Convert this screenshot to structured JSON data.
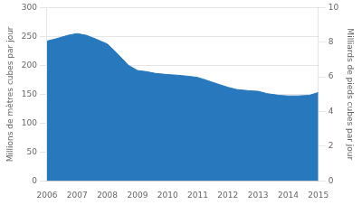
{
  "chart_data": {
    "type": "area",
    "x": [
      2006,
      2006.3,
      2006.7,
      2007,
      2007.3,
      2007.6,
      2008,
      2008.3,
      2008.7,
      2009,
      2009.3,
      2009.6,
      2010,
      2010.3,
      2010.7,
      2011,
      2011.3,
      2011.7,
      2012,
      2012.3,
      2012.7,
      2013,
      2013.3,
      2013.7,
      2014,
      2014.3,
      2014.7,
      2015
    ],
    "values": [
      242,
      246,
      252,
      255,
      252,
      246,
      237,
      222,
      200,
      191,
      189,
      186,
      184,
      183,
      181,
      179,
      174,
      167,
      162,
      158,
      156,
      155,
      151,
      148,
      147,
      147,
      148,
      153
    ],
    "color": "#2878BE",
    "xlim": [
      2006,
      2015
    ],
    "xticks": [
      2006,
      2007,
      2008,
      2009,
      2010,
      2011,
      2012,
      2013,
      2014,
      2015
    ],
    "ylim": [
      0,
      300
    ],
    "yticks": [
      0,
      50,
      100,
      150,
      200,
      250,
      300
    ],
    "y2lim": [
      0,
      10
    ],
    "y2ticks": [
      0,
      2,
      4,
      6,
      8,
      10
    ],
    "ylabel": "Millions de mètres cubes par jour",
    "y2label": "Milliards de pieds cubes par jour",
    "grid": true
  }
}
